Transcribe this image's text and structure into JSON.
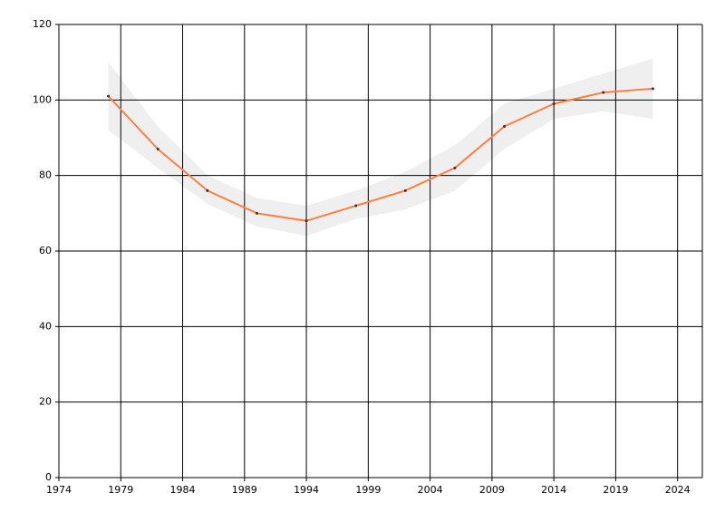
{
  "chart_data": {
    "type": "line",
    "x": [
      1978,
      1982,
      1986,
      1990,
      1994,
      1998,
      2002,
      2006,
      2010,
      2014,
      2018,
      2022
    ],
    "series": [
      {
        "color": "#ff7f3f",
        "marker_color": "#333333",
        "values": [
          101,
          87,
          76,
          70,
          68,
          72,
          76,
          82,
          93,
          99,
          102,
          103
        ]
      }
    ],
    "band": {
      "color": "#efefef",
      "lower": [
        92,
        82,
        72.5,
        66.5,
        64,
        68.5,
        71,
        76,
        87,
        95,
        97,
        95
      ],
      "upper": [
        110,
        93,
        80,
        74,
        72,
        76,
        81,
        88,
        99,
        103,
        107,
        111
      ]
    },
    "xlim": [
      1974,
      2026
    ],
    "xticks": [
      1974,
      1979,
      1984,
      1989,
      1994,
      1999,
      2004,
      2009,
      2014,
      2019,
      2024
    ],
    "ylim": [
      0,
      120
    ],
    "yticks": [
      0,
      20,
      40,
      60,
      80,
      100,
      120
    ],
    "grid": true
  }
}
